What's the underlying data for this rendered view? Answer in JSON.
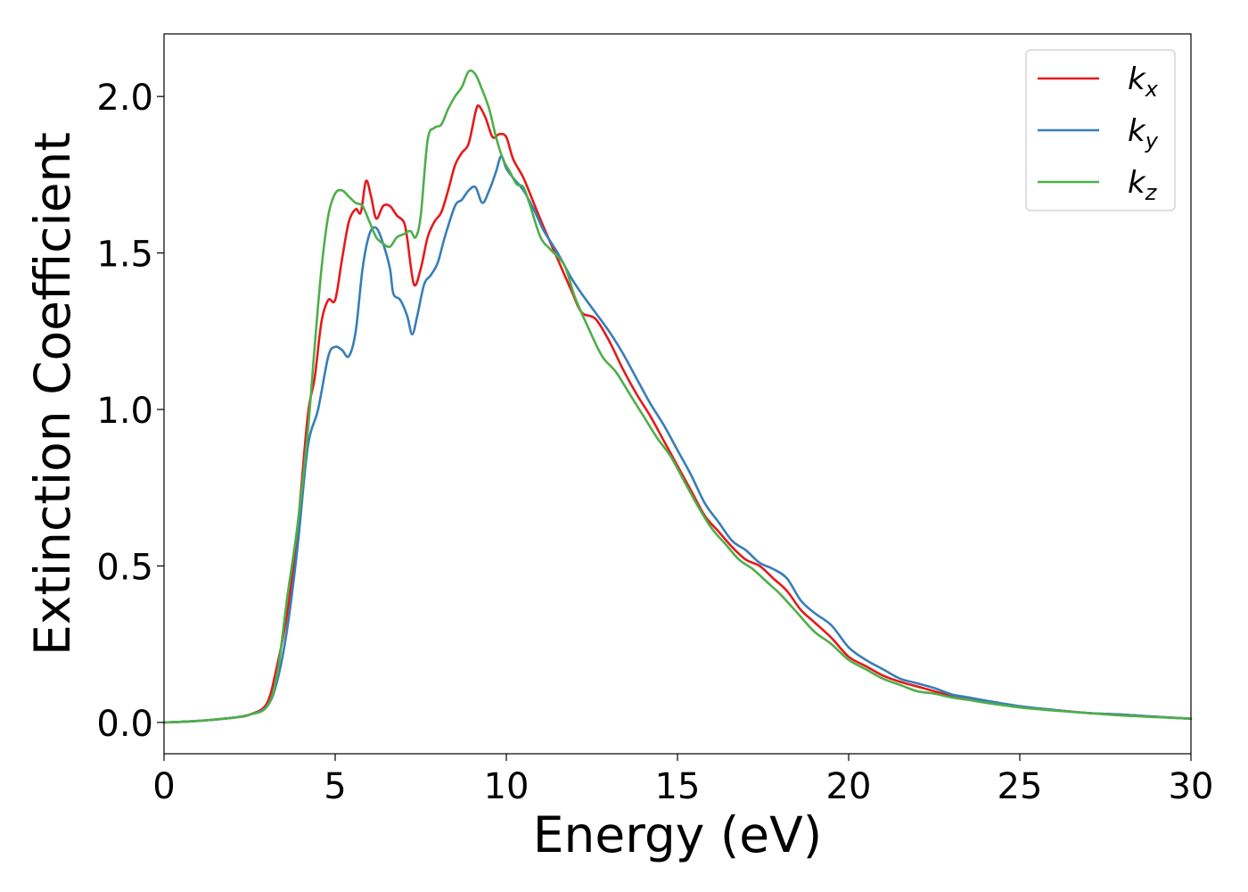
{
  "chart_data": {
    "type": "line",
    "title": "",
    "xlabel": "Energy (eV)",
    "ylabel": "Extinction Coefficient",
    "xlim": [
      0,
      30
    ],
    "ylim": [
      -0.1,
      2.2
    ],
    "xticks": [
      0,
      5,
      10,
      15,
      20,
      25,
      30
    ],
    "xtick_labels": [
      "0",
      "5",
      "10",
      "15",
      "20",
      "25",
      "30"
    ],
    "yticks": [
      0.0,
      0.5,
      1.0,
      1.5,
      2.0
    ],
    "ytick_labels": [
      "0.0",
      "0.5",
      "1.0",
      "1.5",
      "2.0"
    ],
    "grid": false,
    "legend_position": "top-right",
    "series": [
      {
        "name": "k_x",
        "label_main": "k",
        "label_sub": "x",
        "color": "#e41a1c",
        "points": [
          [
            0,
            0
          ],
          [
            1,
            0.005
          ],
          [
            2,
            0.015
          ],
          [
            2.5,
            0.025
          ],
          [
            3,
            0.06
          ],
          [
            3.3,
            0.18
          ],
          [
            3.6,
            0.35
          ],
          [
            3.9,
            0.62
          ],
          [
            4.2,
            0.98
          ],
          [
            4.4,
            1.1
          ],
          [
            4.6,
            1.28
          ],
          [
            4.8,
            1.35
          ],
          [
            5.0,
            1.35
          ],
          [
            5.2,
            1.48
          ],
          [
            5.4,
            1.6
          ],
          [
            5.6,
            1.64
          ],
          [
            5.75,
            1.63
          ],
          [
            5.9,
            1.73
          ],
          [
            6.05,
            1.68
          ],
          [
            6.2,
            1.61
          ],
          [
            6.4,
            1.65
          ],
          [
            6.6,
            1.65
          ],
          [
            6.8,
            1.62
          ],
          [
            7.0,
            1.6
          ],
          [
            7.1,
            1.55
          ],
          [
            7.3,
            1.4
          ],
          [
            7.5,
            1.45
          ],
          [
            7.7,
            1.55
          ],
          [
            7.9,
            1.6
          ],
          [
            8.1,
            1.63
          ],
          [
            8.3,
            1.7
          ],
          [
            8.5,
            1.78
          ],
          [
            8.7,
            1.82
          ],
          [
            8.9,
            1.85
          ],
          [
            9.1,
            1.95
          ],
          [
            9.2,
            1.97
          ],
          [
            9.4,
            1.93
          ],
          [
            9.6,
            1.87
          ],
          [
            9.8,
            1.88
          ],
          [
            10.0,
            1.87
          ],
          [
            10.2,
            1.8
          ],
          [
            10.5,
            1.74
          ],
          [
            10.8,
            1.66
          ],
          [
            11.1,
            1.58
          ],
          [
            11.5,
            1.48
          ],
          [
            11.9,
            1.38
          ],
          [
            12.2,
            1.31
          ],
          [
            12.6,
            1.29
          ],
          [
            13.0,
            1.22
          ],
          [
            13.4,
            1.13
          ],
          [
            13.8,
            1.05
          ],
          [
            14.2,
            0.98
          ],
          [
            14.6,
            0.9
          ],
          [
            15.0,
            0.82
          ],
          [
            15.4,
            0.74
          ],
          [
            15.8,
            0.66
          ],
          [
            16.2,
            0.61
          ],
          [
            16.6,
            0.56
          ],
          [
            17.0,
            0.52
          ],
          [
            17.4,
            0.5
          ],
          [
            17.8,
            0.46
          ],
          [
            18.2,
            0.42
          ],
          [
            18.6,
            0.36
          ],
          [
            19.0,
            0.32
          ],
          [
            19.5,
            0.27
          ],
          [
            20.0,
            0.21
          ],
          [
            20.5,
            0.18
          ],
          [
            21.0,
            0.15
          ],
          [
            21.5,
            0.13
          ],
          [
            22.0,
            0.115
          ],
          [
            22.5,
            0.1
          ],
          [
            23.0,
            0.085
          ],
          [
            23.5,
            0.075
          ],
          [
            24.0,
            0.065
          ],
          [
            25.0,
            0.05
          ],
          [
            26.0,
            0.04
          ],
          [
            27.0,
            0.03
          ],
          [
            28.0,
            0.025
          ],
          [
            29.0,
            0.018
          ],
          [
            30.0,
            0.012
          ]
        ]
      },
      {
        "name": "k_y",
        "label_main": "k",
        "label_sub": "y",
        "color": "#377eb8",
        "points": [
          [
            0,
            0
          ],
          [
            1,
            0.005
          ],
          [
            2,
            0.015
          ],
          [
            2.5,
            0.025
          ],
          [
            3,
            0.05
          ],
          [
            3.3,
            0.13
          ],
          [
            3.6,
            0.3
          ],
          [
            3.9,
            0.56
          ],
          [
            4.2,
            0.88
          ],
          [
            4.5,
            1.0
          ],
          [
            4.8,
            1.17
          ],
          [
            5.0,
            1.2
          ],
          [
            5.2,
            1.19
          ],
          [
            5.4,
            1.17
          ],
          [
            5.6,
            1.25
          ],
          [
            5.8,
            1.45
          ],
          [
            6.0,
            1.56
          ],
          [
            6.2,
            1.58
          ],
          [
            6.4,
            1.53
          ],
          [
            6.6,
            1.45
          ],
          [
            6.7,
            1.37
          ],
          [
            6.9,
            1.35
          ],
          [
            7.1,
            1.3
          ],
          [
            7.25,
            1.24
          ],
          [
            7.4,
            1.3
          ],
          [
            7.6,
            1.4
          ],
          [
            7.8,
            1.43
          ],
          [
            8.0,
            1.47
          ],
          [
            8.2,
            1.55
          ],
          [
            8.5,
            1.65
          ],
          [
            8.7,
            1.67
          ],
          [
            8.9,
            1.7
          ],
          [
            9.1,
            1.71
          ],
          [
            9.3,
            1.66
          ],
          [
            9.5,
            1.7
          ],
          [
            9.7,
            1.76
          ],
          [
            9.85,
            1.81
          ],
          [
            10.0,
            1.77
          ],
          [
            10.2,
            1.74
          ],
          [
            10.5,
            1.7
          ],
          [
            10.8,
            1.64
          ],
          [
            11.1,
            1.57
          ],
          [
            11.5,
            1.5
          ],
          [
            11.9,
            1.42
          ],
          [
            12.2,
            1.37
          ],
          [
            12.6,
            1.31
          ],
          [
            13.0,
            1.25
          ],
          [
            13.4,
            1.18
          ],
          [
            13.8,
            1.1
          ],
          [
            14.2,
            1.02
          ],
          [
            14.6,
            0.95
          ],
          [
            15.0,
            0.87
          ],
          [
            15.4,
            0.79
          ],
          [
            15.8,
            0.7
          ],
          [
            16.2,
            0.64
          ],
          [
            16.6,
            0.58
          ],
          [
            17.0,
            0.55
          ],
          [
            17.4,
            0.51
          ],
          [
            17.8,
            0.49
          ],
          [
            18.2,
            0.46
          ],
          [
            18.6,
            0.39
          ],
          [
            19.0,
            0.35
          ],
          [
            19.5,
            0.31
          ],
          [
            20.0,
            0.24
          ],
          [
            20.5,
            0.2
          ],
          [
            21.0,
            0.17
          ],
          [
            21.5,
            0.14
          ],
          [
            22.0,
            0.125
          ],
          [
            22.5,
            0.11
          ],
          [
            23.0,
            0.09
          ],
          [
            23.5,
            0.08
          ],
          [
            24.0,
            0.07
          ],
          [
            25.0,
            0.052
          ],
          [
            26.0,
            0.04
          ],
          [
            27.0,
            0.03
          ],
          [
            28.0,
            0.025
          ],
          [
            29.0,
            0.018
          ],
          [
            30.0,
            0.012
          ]
        ]
      },
      {
        "name": "k_z",
        "label_main": "k",
        "label_sub": "z",
        "color": "#4daf4a",
        "points": [
          [
            0,
            0
          ],
          [
            1,
            0.005
          ],
          [
            2,
            0.015
          ],
          [
            2.5,
            0.025
          ],
          [
            3,
            0.05
          ],
          [
            3.3,
            0.15
          ],
          [
            3.6,
            0.4
          ],
          [
            3.9,
            0.63
          ],
          [
            4.2,
            0.93
          ],
          [
            4.4,
            1.2
          ],
          [
            4.6,
            1.45
          ],
          [
            4.8,
            1.62
          ],
          [
            5.0,
            1.69
          ],
          [
            5.2,
            1.7
          ],
          [
            5.4,
            1.68
          ],
          [
            5.6,
            1.66
          ],
          [
            5.8,
            1.65
          ],
          [
            6.0,
            1.6
          ],
          [
            6.2,
            1.55
          ],
          [
            6.4,
            1.53
          ],
          [
            6.6,
            1.52
          ],
          [
            6.8,
            1.55
          ],
          [
            7.0,
            1.56
          ],
          [
            7.2,
            1.57
          ],
          [
            7.35,
            1.55
          ],
          [
            7.5,
            1.62
          ],
          [
            7.7,
            1.86
          ],
          [
            7.9,
            1.9
          ],
          [
            8.1,
            1.91
          ],
          [
            8.3,
            1.96
          ],
          [
            8.5,
            2.0
          ],
          [
            8.7,
            2.03
          ],
          [
            8.9,
            2.08
          ],
          [
            9.1,
            2.07
          ],
          [
            9.3,
            2.02
          ],
          [
            9.5,
            1.96
          ],
          [
            9.7,
            1.87
          ],
          [
            9.9,
            1.8
          ],
          [
            10.1,
            1.76
          ],
          [
            10.3,
            1.72
          ],
          [
            10.5,
            1.71
          ],
          [
            10.7,
            1.65
          ],
          [
            11.0,
            1.55
          ],
          [
            11.3,
            1.51
          ],
          [
            11.7,
            1.46
          ],
          [
            12.0,
            1.36
          ],
          [
            12.4,
            1.26
          ],
          [
            12.8,
            1.17
          ],
          [
            13.2,
            1.12
          ],
          [
            13.6,
            1.05
          ],
          [
            14.0,
            0.98
          ],
          [
            14.4,
            0.91
          ],
          [
            14.8,
            0.85
          ],
          [
            15.2,
            0.77
          ],
          [
            15.6,
            0.69
          ],
          [
            16.0,
            0.62
          ],
          [
            16.4,
            0.57
          ],
          [
            16.8,
            0.52
          ],
          [
            17.2,
            0.49
          ],
          [
            17.6,
            0.45
          ],
          [
            18.0,
            0.41
          ],
          [
            18.5,
            0.35
          ],
          [
            19.0,
            0.29
          ],
          [
            19.5,
            0.25
          ],
          [
            20.0,
            0.2
          ],
          [
            20.5,
            0.17
          ],
          [
            21.0,
            0.14
          ],
          [
            21.5,
            0.12
          ],
          [
            22.0,
            0.1
          ],
          [
            22.5,
            0.092
          ],
          [
            23.0,
            0.08
          ],
          [
            23.5,
            0.072
          ],
          [
            24.0,
            0.063
          ],
          [
            25.0,
            0.048
          ],
          [
            26.0,
            0.038
          ],
          [
            27.0,
            0.03
          ],
          [
            28.0,
            0.022
          ],
          [
            29.0,
            0.017
          ],
          [
            30.0,
            0.012
          ]
        ]
      }
    ]
  }
}
